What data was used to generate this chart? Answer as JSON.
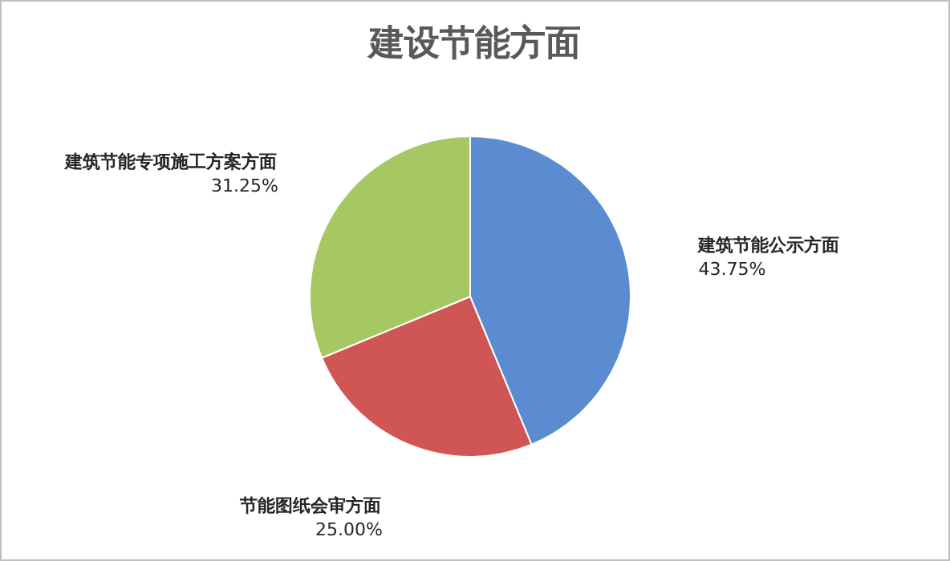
{
  "chart_data": {
    "type": "pie",
    "title": "建设节能方面",
    "categories": [
      "建筑节能公示方面",
      "节能图纸会审方面",
      "建筑节能专项施工方案方面"
    ],
    "values": [
      43.75,
      25.0,
      31.25
    ],
    "colors": [
      "#5b8bd0",
      "#d05555",
      "#a5c862"
    ],
    "value_labels": [
      "43.75%",
      "25.00%",
      "31.25%"
    ]
  }
}
